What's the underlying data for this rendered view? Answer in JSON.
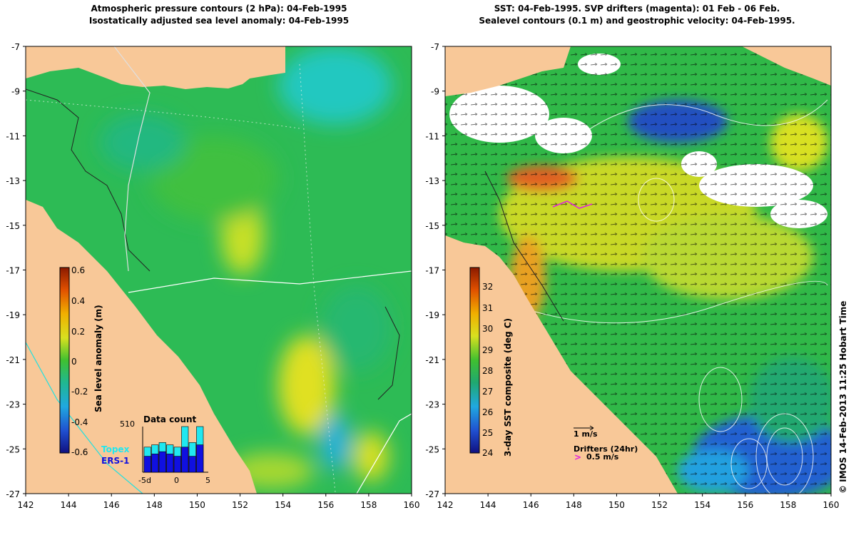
{
  "left": {
    "title_line1": "Atmospheric pressure contours (2 hPa): 04-Feb-1995",
    "title_line2": "Isostatically adjusted sea level anomaly: 04-Feb-1995",
    "colorbar_label": "Sea level anomaly (m)",
    "colorbar_ticks": [
      "0.6",
      "0.4",
      "0.2",
      "0",
      "-0.2",
      "-0.4",
      "-0.6"
    ],
    "datacount": {
      "title": "Data count",
      "max_label": "510",
      "xticks": [
        "-5d",
        "0",
        "5"
      ],
      "topex_fraction": [
        0.55,
        0.6,
        0.65,
        0.6,
        0.55,
        1.0,
        0.65,
        1.0
      ],
      "ers1_fraction": [
        0.35,
        0.4,
        0.45,
        0.4,
        0.35,
        0.55,
        0.35,
        0.6
      ]
    },
    "legend_topex": "Topex",
    "legend_ers1": "ERS-1"
  },
  "right": {
    "title_line1": "SST: 04-Feb-1995. SVP drifters (magenta): 01 Feb - 06 Feb.",
    "title_line2": "Sealevel contours (0.1 m) and geostrophic velocity: 04-Feb-1995.",
    "colorbar_label": "3-day SST composite (deg C)",
    "colorbar_ticks": [
      "32",
      "31",
      "30",
      "29",
      "28",
      "27",
      "26",
      "25",
      "24"
    ],
    "scale_label": "1 m/s",
    "drifters_label": "Drifters (24hr)",
    "drifters_speed": "0.5 m/s"
  },
  "axes": {
    "x_ticks": [
      "142",
      "144",
      "146",
      "148",
      "150",
      "152",
      "154",
      "156",
      "158",
      "160"
    ],
    "y_ticks": [
      "-7",
      "-9",
      "-11",
      "-13",
      "-15",
      "-17",
      "-19",
      "-21",
      "-23",
      "-25",
      "-27"
    ]
  },
  "credit": "© IMOS 14-Feb-2013 11:25 Hobart Time",
  "colors": {
    "land": "#f8c898",
    "sea_green": "#2dbb55",
    "sla_high": "#d8e020",
    "sla_low": "#20b8d8",
    "sst_warm": "#e07020",
    "sst_cool": "#1040c0",
    "topex": "#20e8f0",
    "ers1": "#1010e0",
    "drifter": "#e020e0"
  }
}
